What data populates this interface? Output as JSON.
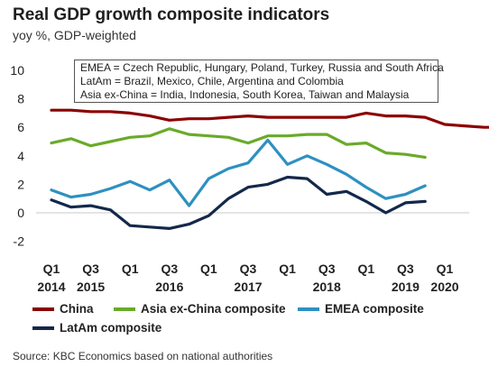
{
  "header": {
    "title": "Real GDP growth composite indicators",
    "subtitle": "yoy %, GDP-weighted"
  },
  "notes": [
    "EMEA = Czech Republic, Hungary, Poland, Turkey, Russia and South Africa",
    "LatAm = Brazil, Mexico, Chile, Argentina and Colombia",
    "Asia ex-China = India, Indonesia, South Korea, Taiwan and Malaysia"
  ],
  "footer": {
    "source": "Source: KBC Economics based on national authorities"
  },
  "chart_data": {
    "type": "line",
    "title": "Real GDP growth composite indicators",
    "subtitle": "yoy %, GDP-weighted",
    "x": [
      "2014Q1",
      "2014Q2",
      "2014Q3",
      "2014Q4",
      "2015Q1",
      "2015Q2",
      "2015Q3",
      "2015Q4",
      "2016Q1",
      "2016Q2",
      "2016Q3",
      "2016Q4",
      "2017Q1",
      "2017Q2",
      "2017Q3",
      "2017Q4",
      "2018Q1",
      "2018Q2",
      "2018Q3",
      "2018Q4",
      "2019Q1",
      "2019Q2",
      "2019Q3",
      "2019Q4"
    ],
    "x_tick_labels": [
      {
        "quarter": "Q1",
        "year": "2014"
      },
      {
        "quarter": "Q3",
        "year": "2015"
      },
      {
        "quarter": "Q1",
        "year": ""
      },
      {
        "quarter": "Q3",
        "year": "2016"
      },
      {
        "quarter": "Q1",
        "year": ""
      },
      {
        "quarter": "Q3",
        "year": "2017"
      },
      {
        "quarter": "Q1",
        "year": ""
      },
      {
        "quarter": "Q3",
        "year": "2018"
      },
      {
        "quarter": "Q1",
        "year": ""
      },
      {
        "quarter": "Q3",
        "year": "2019"
      },
      {
        "quarter": "Q1",
        "year": "2020"
      }
    ],
    "ylim": [
      -2,
      10
    ],
    "yticks": [
      -2,
      0,
      2,
      4,
      6,
      8,
      10
    ],
    "grid": false,
    "legend_position": "bottom",
    "series": [
      {
        "name": "China",
        "color": "#8b0000",
        "values": [
          7.2,
          7.2,
          7.1,
          7.1,
          7.0,
          6.8,
          6.5,
          6.6,
          6.6,
          6.7,
          6.8,
          6.7,
          6.7,
          6.7,
          6.7,
          6.7,
          7.0,
          6.8,
          6.8,
          6.7,
          6.2,
          6.1,
          6.0,
          6.0
        ]
      },
      {
        "name": "Asia ex-China composite",
        "color": "#6aaa2a",
        "values": [
          4.9,
          5.2,
          4.7,
          5.0,
          5.3,
          5.4,
          5.9,
          5.5,
          5.4,
          5.3,
          4.9,
          5.4,
          5.4,
          5.5,
          5.5,
          4.8,
          4.9,
          4.2,
          4.1,
          3.9,
          null,
          null,
          null,
          null
        ]
      },
      {
        "name": "EMEA composite",
        "color": "#2e90c0",
        "values": [
          1.6,
          1.1,
          1.3,
          1.7,
          2.2,
          1.6,
          2.3,
          0.5,
          2.4,
          3.1,
          3.5,
          5.1,
          3.4,
          4.0,
          3.4,
          2.7,
          1.8,
          1.0,
          1.3,
          1.9,
          null,
          null,
          null,
          null
        ]
      },
      {
        "name": "LatAm composite",
        "color": "#14284b",
        "values": [
          0.9,
          0.4,
          0.5,
          0.2,
          -0.9,
          -1.0,
          -1.1,
          -0.8,
          -0.2,
          1.0,
          1.8,
          2.0,
          2.5,
          2.4,
          1.3,
          1.5,
          0.8,
          0.0,
          0.7,
          0.8,
          null,
          null,
          null,
          null
        ]
      }
    ]
  }
}
